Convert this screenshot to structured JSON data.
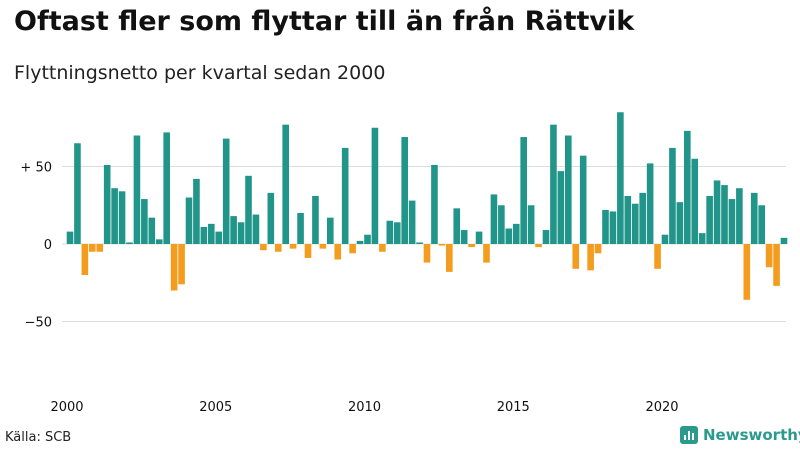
{
  "header": {
    "title": "Oftast fler som flyttar till än från Rättvik",
    "subtitle": "Flyttningsnetto per kvartal sedan 2000"
  },
  "footer": {
    "source": "Källa: SCB",
    "brand": "Newsworthy"
  },
  "colors": {
    "positive": "#21958a",
    "negative": "#f39c1e",
    "grid": "#dddddd",
    "text": "#111111"
  },
  "chart_data": {
    "type": "bar",
    "title": "Oftast fler som flyttar till än från Rättvik",
    "subtitle": "Flyttningsnetto per kvartal sedan 2000",
    "x_start_year": 2000,
    "periods_per_year": 4,
    "xticks": [
      "2000",
      "2005",
      "2010",
      "2015",
      "2020"
    ],
    "yticks": [
      {
        "value": 50,
        "label": "+ 50"
      },
      {
        "value": 0,
        "label": "0"
      },
      {
        "value": -50,
        "label": "−50"
      }
    ],
    "ylim": [
      -92,
      87
    ],
    "grid": true,
    "values": [
      8,
      65,
      -20,
      -5,
      -5,
      51,
      36,
      34,
      1,
      70,
      29,
      17,
      3,
      72,
      -30,
      -26,
      30,
      42,
      11,
      13,
      8,
      68,
      18,
      14,
      44,
      19,
      -4,
      33,
      -5,
      77,
      -3,
      20,
      -9,
      31,
      -3,
      17,
      -10,
      62,
      -6,
      2,
      6,
      75,
      -5,
      15,
      14,
      69,
      28,
      1,
      -12,
      51,
      -1,
      -18,
      23,
      9,
      -2,
      8,
      -12,
      32,
      25,
      10,
      13,
      69,
      25,
      -2,
      9,
      77,
      47,
      70,
      -16,
      57,
      -17,
      -6,
      22,
      21,
      85,
      31,
      26,
      33,
      52,
      -16,
      6,
      62,
      27,
      73,
      55,
      7,
      31,
      41,
      38,
      29,
      36,
      -36,
      33,
      25,
      -15,
      -27,
      4
    ]
  }
}
